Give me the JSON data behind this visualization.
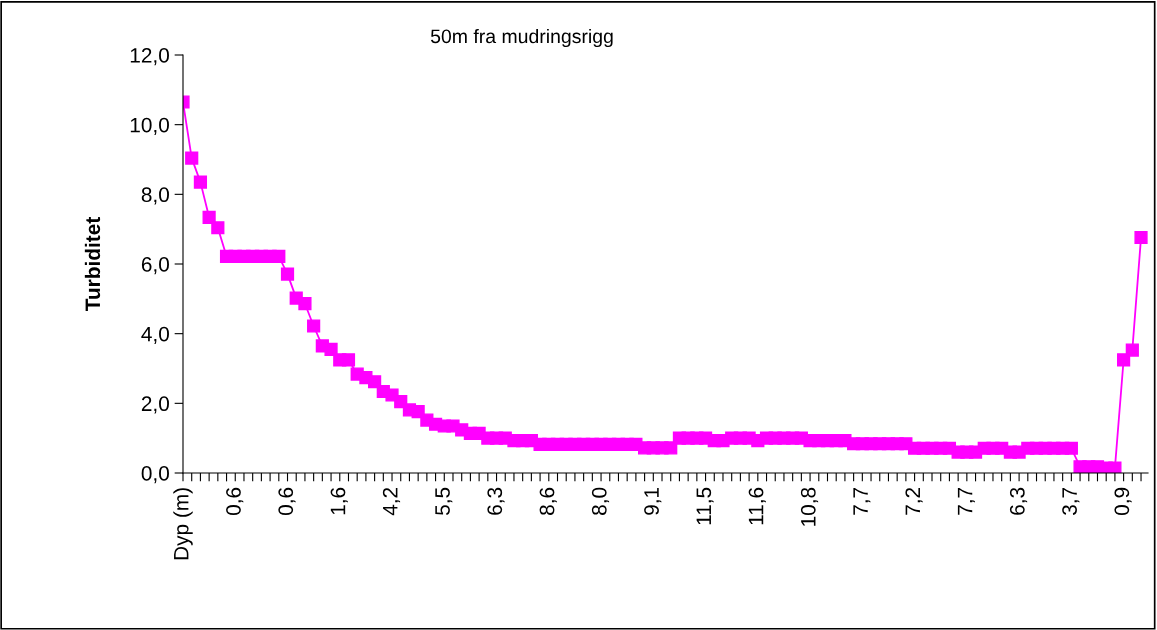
{
  "chart_data": {
    "type": "line",
    "title": "50m fra mudringsrigg",
    "ylabel": "Turbiditet",
    "categories": [
      "Dyp (m)",
      null,
      null,
      null,
      null,
      null,
      "0,6",
      null,
      null,
      null,
      null,
      null,
      "0,6",
      null,
      null,
      null,
      null,
      null,
      "1,6",
      null,
      null,
      null,
      null,
      null,
      "4,2",
      null,
      null,
      null,
      null,
      null,
      "5,5",
      null,
      null,
      null,
      null,
      null,
      "6,3",
      null,
      null,
      null,
      null,
      null,
      "8,6",
      null,
      null,
      null,
      null,
      null,
      "8,0",
      null,
      null,
      null,
      null,
      null,
      "9,1",
      null,
      null,
      null,
      null,
      null,
      "11,5",
      null,
      null,
      null,
      null,
      null,
      "11,6",
      null,
      null,
      null,
      null,
      null,
      "10,8",
      null,
      null,
      null,
      null,
      null,
      "7,7",
      null,
      null,
      null,
      null,
      null,
      "7,2",
      null,
      null,
      null,
      null,
      null,
      "7,7",
      null,
      null,
      null,
      null,
      null,
      "6,3",
      null,
      null,
      null,
      null,
      null,
      "3,7",
      null,
      null,
      null,
      null,
      null,
      "0,9",
      null,
      null
    ],
    "series": [
      {
        "color": "#ff00ff",
        "values": [
          10.65,
          9.04,
          8.35,
          7.34,
          7.04,
          6.22,
          6.22,
          6.22,
          6.22,
          6.22,
          6.22,
          6.22,
          5.71,
          5.02,
          4.86,
          4.22,
          3.65,
          3.55,
          3.25,
          3.25,
          2.84,
          2.74,
          2.62,
          2.34,
          2.24,
          2.05,
          1.81,
          1.76,
          1.52,
          1.4,
          1.35,
          1.35,
          1.24,
          1.14,
          1.14,
          1.0,
          1.0,
          1.0,
          0.93,
          0.93,
          0.93,
          0.82,
          0.82,
          0.82,
          0.82,
          0.82,
          0.82,
          0.82,
          0.82,
          0.82,
          0.82,
          0.82,
          0.82,
          0.72,
          0.72,
          0.72,
          0.72,
          1.0,
          1.0,
          1.0,
          1.0,
          0.93,
          0.93,
          1.0,
          1.0,
          1.0,
          0.93,
          1.0,
          1.0,
          1.0,
          1.0,
          1.0,
          0.93,
          0.93,
          0.93,
          0.93,
          0.93,
          0.84,
          0.84,
          0.84,
          0.84,
          0.84,
          0.84,
          0.84,
          0.71,
          0.71,
          0.71,
          0.71,
          0.71,
          0.6,
          0.6,
          0.6,
          0.71,
          0.71,
          0.71,
          0.6,
          0.6,
          0.71,
          0.71,
          0.71,
          0.71,
          0.71,
          0.71,
          0.18,
          0.18,
          0.18,
          0.14,
          0.14,
          3.25,
          3.53,
          6.76
        ]
      }
    ],
    "ylim": [
      0,
      12
    ],
    "yticks": [
      {
        "value": 0,
        "label": "0,0"
      },
      {
        "value": 2,
        "label": "2,0"
      },
      {
        "value": 4,
        "label": "4,0"
      },
      {
        "value": 6,
        "label": "6,0"
      },
      {
        "value": 8,
        "label": "8,0"
      },
      {
        "value": 10,
        "label": "10,0"
      },
      {
        "value": 12,
        "label": "12,0"
      }
    ],
    "marker": "square",
    "line_style": "solid",
    "grid": false,
    "legend": false
  }
}
